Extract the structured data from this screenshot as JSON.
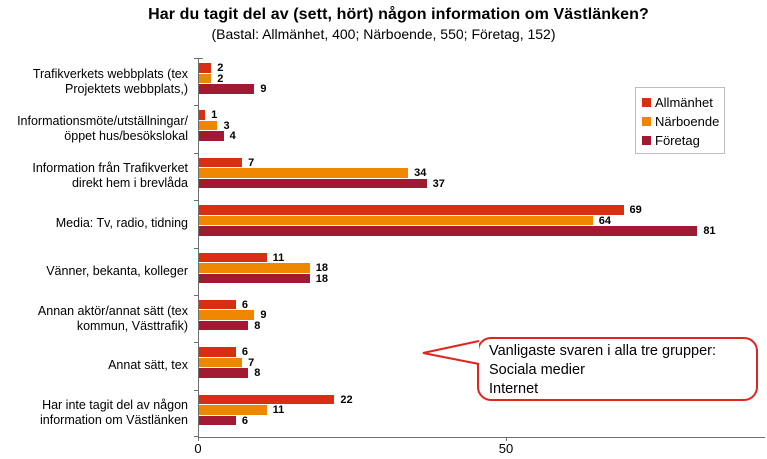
{
  "chart_data": {
    "type": "bar",
    "orientation": "horizontal",
    "title": "Har du tagit del av (sett, hört) någon information om Västlänken?",
    "subtitle": "(Bastal: Allmänhet, 400; Närboende, 550; Företag, 152)",
    "categories": [
      "Trafikverkets webbplats (tex\nProjektets webbplats,)",
      "Informationsmöte/utställningar/\nöppet hus/besökslokal",
      "Information från Trafikverket\ndirekt hem i brevlåda",
      "Media: Tv, radio, tidning",
      "Vänner, bekanta, kolleger",
      "Annan aktör/annat sätt (tex\nkommun, Västtrafik)",
      "Annat sätt, tex",
      "Har inte tagit del av någon\ninformation om Västlänken"
    ],
    "series": [
      {
        "name": "Allmänhet",
        "color": "#da2e12",
        "values": [
          2,
          1,
          7,
          69,
          11,
          6,
          6,
          22
        ]
      },
      {
        "name": "Närboende",
        "color": "#ee8600",
        "values": [
          2,
          3,
          34,
          64,
          18,
          9,
          7,
          11
        ]
      },
      {
        "name": "Företag",
        "color": "#a21934",
        "values": [
          9,
          4,
          37,
          81,
          18,
          8,
          8,
          6
        ]
      }
    ],
    "xlim": [
      0,
      92
    ],
    "x_ticks": [
      "0",
      "50"
    ],
    "x_tick_values": [
      0,
      50
    ],
    "grid": "off",
    "legend_position": "upper-right",
    "value_labels": "shown at end of each bar",
    "annotation": {
      "shape": "rounded speech bubble with left pointer",
      "border_color": "#e2241d",
      "lines": [
        "Vanligaste svaren i alla tre grupper:",
        "Sociala medier",
        "Internet"
      ]
    }
  }
}
